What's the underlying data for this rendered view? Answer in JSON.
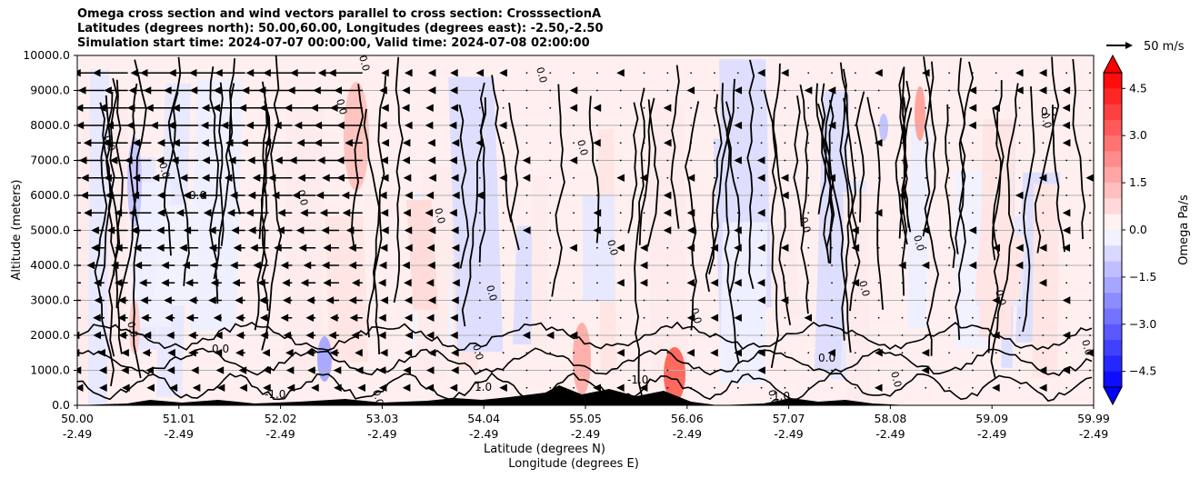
{
  "chart_data": {
    "type": "heatmap",
    "title_lines": [
      "Omega cross section and wind vectors parallel to cross section: CrosssectionA",
      "Latitudes (degrees north): 50.00,60.00, Longitudes (degrees east): -2.50,-2.50",
      "Simulation start time: 2024-07-07 00:00:00, Valid time: 2024-07-08 02:00:00"
    ],
    "xlabel": "Latitude (degrees N)",
    "xlabel2": "Longitude (degrees E)",
    "ylabel": "Altitude (meters)",
    "xlim": [
      50.0,
      59.99
    ],
    "ylim": [
      0,
      10000
    ],
    "x_ticks": [
      {
        "lat": "50.00",
        "lon": "-2.49"
      },
      {
        "lat": "51.01",
        "lon": "-2.49"
      },
      {
        "lat": "52.02",
        "lon": "-2.49"
      },
      {
        "lat": "53.03",
        "lon": "-2.49"
      },
      {
        "lat": "54.04",
        "lon": "-2.49"
      },
      {
        "lat": "55.05",
        "lon": "-2.49"
      },
      {
        "lat": "56.06",
        "lon": "-2.49"
      },
      {
        "lat": "57.07",
        "lon": "-2.49"
      },
      {
        "lat": "58.08",
        "lon": "-2.49"
      },
      {
        "lat": "59.09",
        "lon": "-2.49"
      },
      {
        "lat": "59.99",
        "lon": "-2.49"
      }
    ],
    "y_ticks": [
      "0.0",
      "1000.0",
      "2000.0",
      "3000.0",
      "4000.0",
      "5000.0",
      "6000.0",
      "7000.0",
      "8000.0",
      "9000.0",
      "10000.0"
    ],
    "grid": "horizontal",
    "colorbar": {
      "label": "Omega Pa/s",
      "range": [
        -5,
        5
      ],
      "extend": "both",
      "ticks": [
        "4.5",
        "3.0",
        "1.5",
        "0.0",
        "−1.5",
        "−3.0",
        "−4.5"
      ],
      "colormap": "bwr"
    },
    "quiver_key": {
      "label": "50 m/s"
    },
    "contour_labels": [
      "0.0",
      "-1.0",
      "1.0",
      "1.0"
    ],
    "colors": {
      "positive": "#ff0000",
      "negative": "#0000ff",
      "neutral": "#ffffff",
      "terrain": "#000000"
    }
  }
}
